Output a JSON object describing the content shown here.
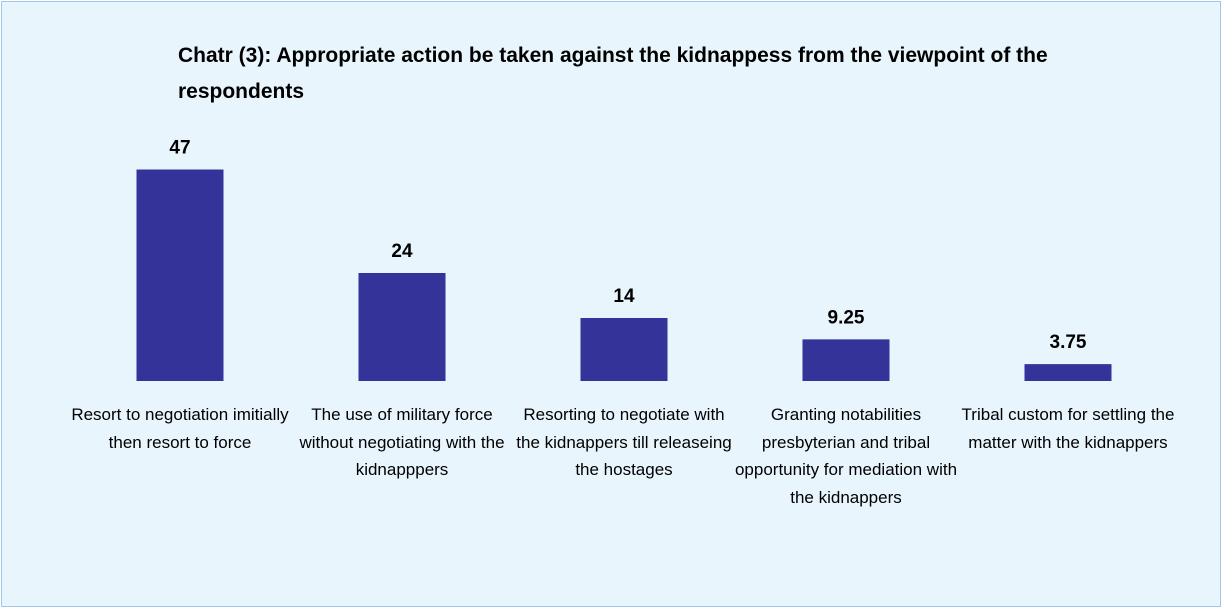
{
  "chart_data": {
    "type": "bar",
    "title": "Chatr (3): Appropriate action be taken against the kidnappess from the viewpoint of the respondents",
    "categories": [
      "Resort to negotiation imitially then resort to force",
      "The use of military force without negotiating with the kidnapppers",
      "Resorting to negotiate with the kidnappers till releaseing the hostages",
      "Granting notabilities presbyterian and tribal opportunity for mediation with the kidnappers",
      "Tribal custom for settling the matter with the kidnappers"
    ],
    "values": [
      47,
      24,
      14,
      9.25,
      3.75
    ],
    "data_labels": [
      "47",
      "24",
      "14",
      "9.25",
      "3.75"
    ],
    "bar_color": "#333399",
    "background_color": "#e9f5fd",
    "grid": false,
    "legend": "none"
  }
}
